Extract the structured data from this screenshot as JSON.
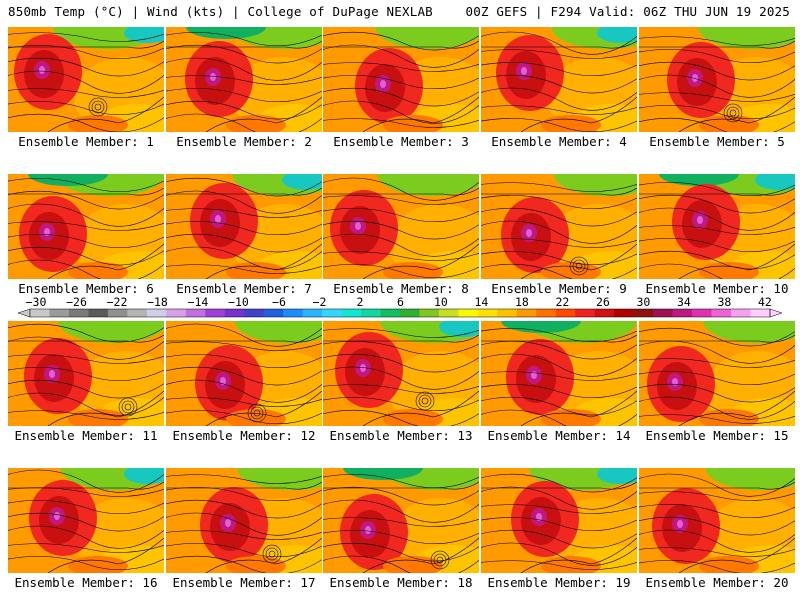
{
  "header": {
    "left": "850mb Temp (°C) | Wind (kts) | College of DuPage NEXLAB",
    "right": "00Z GEFS | F294 Valid: 06Z THU JUN 19 2025"
  },
  "colorbar": {
    "labels": [
      "-30",
      "-26",
      "-22",
      "-18",
      "-14",
      "-10",
      "-6",
      "-2",
      "2",
      "6",
      "10",
      "14",
      "18",
      "22",
      "26",
      "30",
      "34",
      "38",
      "42"
    ],
    "colors": [
      "#c8c8c8",
      "#9a9a9a",
      "#7a7a7a",
      "#5a5a5a",
      "#8f8f8f",
      "#b4b4b4",
      "#cfcfe8",
      "#d8a0e8",
      "#c070e0",
      "#a040d8",
      "#7830d0",
      "#4040c8",
      "#2060e0",
      "#1a8cff",
      "#28b4ff",
      "#30d8ff",
      "#10e8d0",
      "#10d8a0",
      "#10c060",
      "#30b030",
      "#80c820",
      "#c8e020",
      "#f8f800",
      "#ffe000",
      "#ffc000",
      "#ff9800",
      "#ff7000",
      "#ff4800",
      "#f02020",
      "#d01010",
      "#b00000",
      "#901010",
      "#a01050",
      "#c01880",
      "#e030b0",
      "#f060d8",
      "#f8a0f0",
      "#ffd0ff"
    ]
  },
  "members": [
    {
      "label": "Ensemble Member: 1"
    },
    {
      "label": "Ensemble Member: 2"
    },
    {
      "label": "Ensemble Member: 3"
    },
    {
      "label": "Ensemble Member: 4"
    },
    {
      "label": "Ensemble Member: 5"
    },
    {
      "label": "Ensemble Member: 6"
    },
    {
      "label": "Ensemble Member: 7"
    },
    {
      "label": "Ensemble Member: 8"
    },
    {
      "label": "Ensemble Member: 9"
    },
    {
      "label": "Ensemble Member: 10"
    },
    {
      "label": "Ensemble Member: 11"
    },
    {
      "label": "Ensemble Member: 12"
    },
    {
      "label": "Ensemble Member: 13"
    },
    {
      "label": "Ensemble Member: 14"
    },
    {
      "label": "Ensemble Member: 15"
    },
    {
      "label": "Ensemble Member: 16"
    },
    {
      "label": "Ensemble Member: 17"
    },
    {
      "label": "Ensemble Member: 18"
    },
    {
      "label": "Ensemble Member: 19"
    },
    {
      "label": "Ensemble Member: 20"
    }
  ]
}
